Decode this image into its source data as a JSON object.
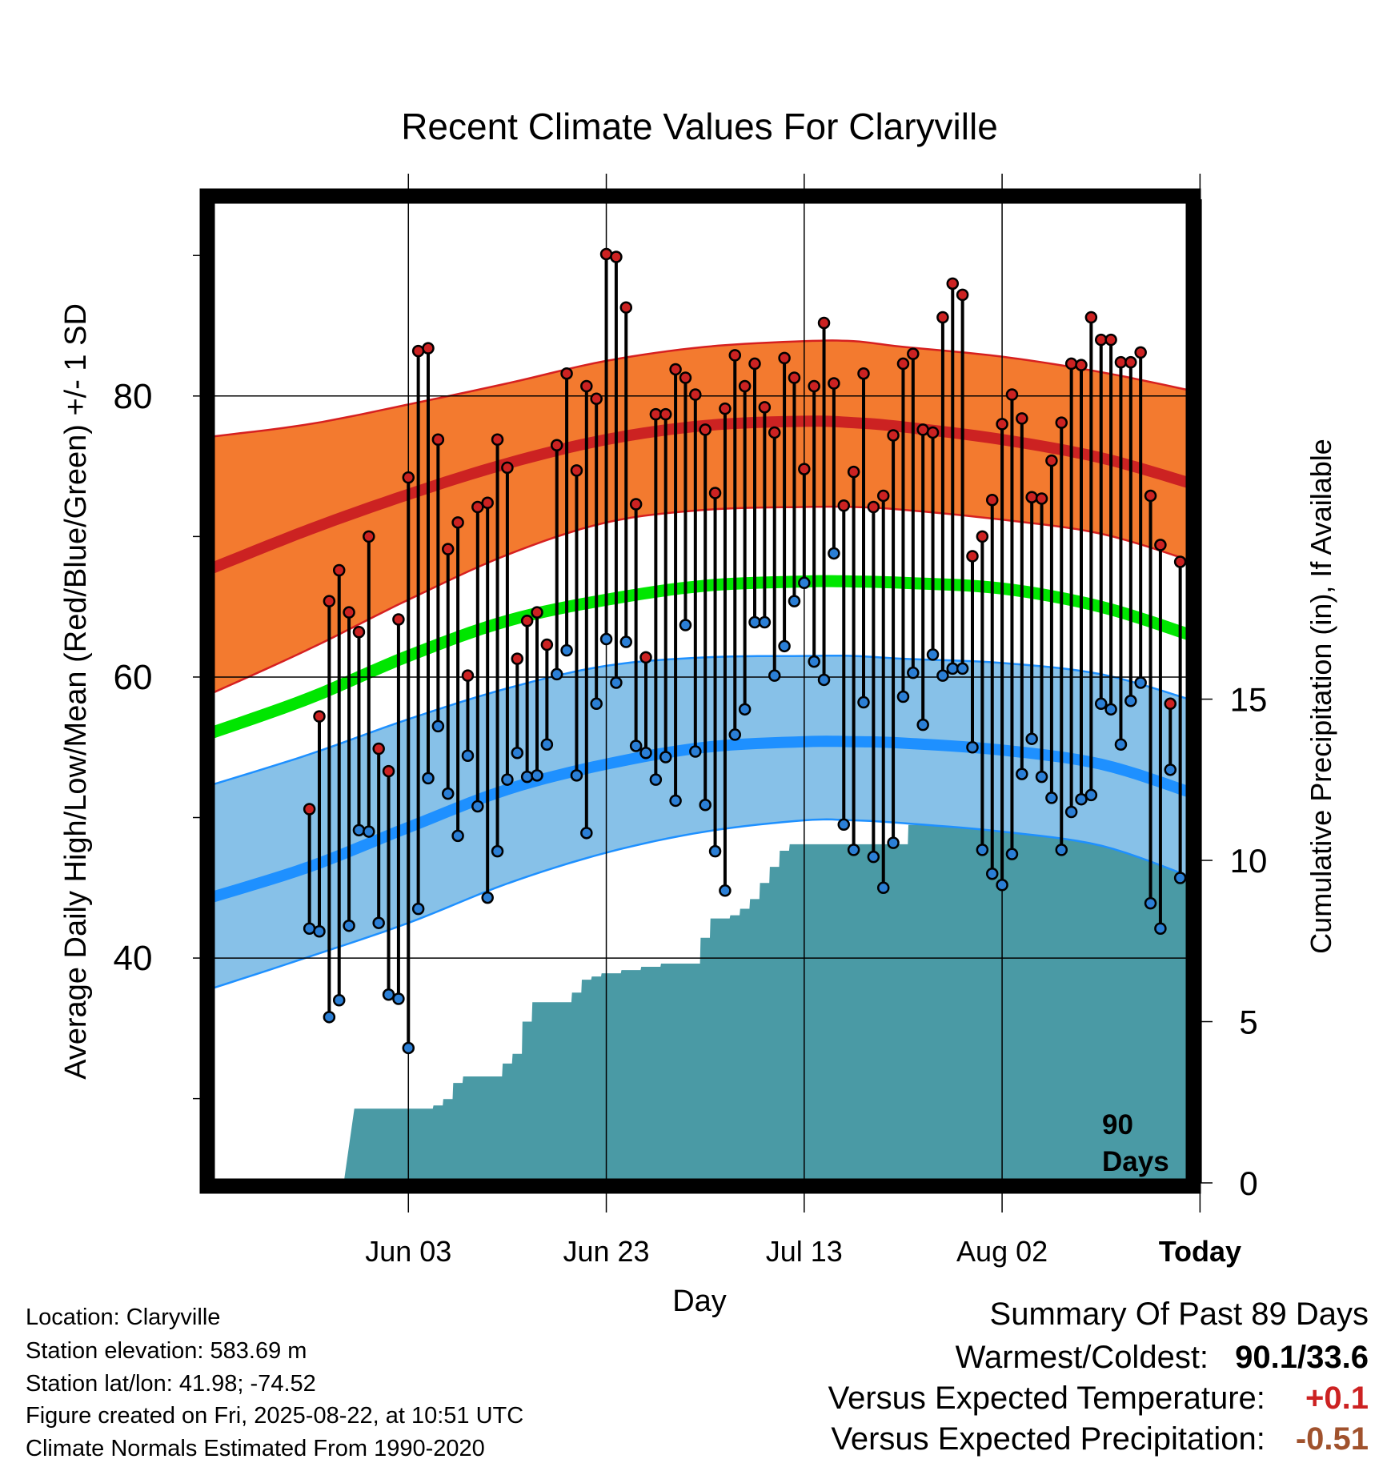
{
  "chart_data": {
    "type": "line",
    "title": "Recent Climate Values For Claryville",
    "xlabel": "Day",
    "ylabel": "Average Daily High/Low/Mean (Red/Blue/Green) +/- 1 SD",
    "y2label": "Cumulative Precipitation (in), If Available",
    "ylim": [
      24,
      94
    ],
    "yticks": [
      40,
      60,
      80
    ],
    "y2lim": [
      0,
      30.5
    ],
    "y2ticks": [
      0,
      5,
      10,
      15
    ],
    "xlim": [
      -10,
      89
    ],
    "xticks": [
      {
        "day": 10,
        "label": "Jun 03"
      },
      {
        "day": 30,
        "label": "Jun 23"
      },
      {
        "day": 50,
        "label": "Jul 13"
      },
      {
        "day": 70,
        "label": "Aug 02"
      },
      {
        "day": 90,
        "label": "Today"
      }
    ],
    "grid": true,
    "today_marker": {
      "day": 90,
      "label_line1": "90",
      "label_line2": "Days"
    },
    "normals": {
      "days": [
        -10,
        0,
        10,
        20,
        30,
        40,
        50,
        55,
        60,
        70,
        80,
        89
      ],
      "high_mean": [
        67.7,
        70.5,
        73.0,
        75.2,
        76.9,
        77.9,
        78.2,
        78.1,
        77.8,
        76.9,
        75.6,
        73.8
      ],
      "high_upper": [
        77.1,
        78.0,
        79.4,
        80.9,
        82.5,
        83.5,
        83.9,
        83.9,
        83.5,
        82.8,
        81.7,
        80.4
      ],
      "high_lower": [
        58.8,
        62.0,
        65.5,
        68.7,
        71.0,
        71.9,
        72.1,
        72.1,
        71.9,
        71.2,
        70.2,
        68.3
      ],
      "mean_normal": [
        56.0,
        58.5,
        61.5,
        64.0,
        65.5,
        66.5,
        66.8,
        66.8,
        66.7,
        66.3,
        65.0,
        63.0
      ],
      "low_mean": [
        44.3,
        46.5,
        49.3,
        52.0,
        53.8,
        55.0,
        55.4,
        55.4,
        55.3,
        54.8,
        53.8,
        51.8
      ],
      "low_upper": [
        52.3,
        54.5,
        57.0,
        59.2,
        60.8,
        61.4,
        61.5,
        61.5,
        61.3,
        61.0,
        60.2,
        58.4
      ],
      "low_lower": [
        37.8,
        40.1,
        42.5,
        45.3,
        47.5,
        49.0,
        49.8,
        49.8,
        49.6,
        49.0,
        48.0,
        45.8
      ]
    },
    "series": [
      {
        "name": "High",
        "color": "#cc2222",
        "values": [
          50.6,
          57.2,
          65.4,
          67.6,
          64.6,
          63.2,
          70.0,
          54.9,
          53.3,
          64.1,
          74.2,
          83.2,
          83.4,
          76.9,
          69.1,
          71.0,
          60.1,
          72.1,
          72.4,
          76.9,
          74.9,
          61.3,
          64.0,
          64.6,
          62.3,
          76.5,
          81.6,
          74.7,
          80.7,
          79.8,
          90.1,
          89.9,
          86.3,
          72.3,
          61.4,
          78.7,
          78.7,
          81.9,
          81.3,
          80.1,
          77.6,
          73.1,
          79.1,
          82.9,
          80.7,
          82.3,
          79.2,
          77.4,
          82.7,
          81.3,
          74.8,
          80.7,
          85.2,
          80.9,
          72.2,
          74.6,
          81.6,
          72.1,
          72.9,
          77.2,
          82.3,
          83.0,
          77.6,
          77.4,
          85.6,
          88.0,
          87.2,
          68.6,
          70.0,
          72.6,
          78.0,
          80.1,
          78.4,
          72.8,
          72.7,
          75.4,
          78.1,
          82.3,
          82.2,
          85.6,
          84.0,
          84.0,
          82.4,
          82.4,
          83.1,
          72.9,
          69.4,
          58.1,
          68.2
        ]
      },
      {
        "name": "Low",
        "color": "#2b7fd6",
        "values": [
          42.1,
          41.9,
          35.8,
          37.0,
          42.3,
          49.1,
          49.0,
          42.5,
          37.4,
          37.1,
          33.6,
          43.5,
          52.8,
          56.5,
          51.7,
          48.7,
          54.4,
          50.8,
          44.3,
          47.6,
          52.7,
          54.6,
          52.9,
          53.0,
          55.2,
          60.2,
          61.9,
          53.0,
          48.9,
          58.1,
          62.7,
          59.6,
          62.5,
          55.1,
          54.6,
          52.7,
          54.3,
          51.2,
          63.7,
          54.7,
          50.9,
          47.6,
          44.8,
          55.9,
          57.7,
          63.9,
          63.9,
          60.1,
          62.2,
          65.4,
          66.7,
          61.1,
          59.8,
          68.8,
          49.5,
          47.7,
          58.2,
          47.2,
          45.0,
          48.2,
          58.6,
          60.3,
          56.6,
          61.6,
          60.1,
          60.6,
          60.6,
          55.0,
          47.7,
          46.0,
          45.2,
          47.4,
          53.1,
          55.6,
          52.9,
          51.4,
          47.7,
          50.4,
          51.3,
          51.6,
          58.1,
          57.7,
          55.2,
          58.3,
          59.6,
          43.9,
          42.1,
          53.4,
          45.7
        ]
      },
      {
        "name": "Cumulative Precipitation",
        "color": "#4a9aa5",
        "days": [
          0,
          1,
          2,
          3,
          5,
          6,
          7,
          8,
          9,
          10,
          11,
          12,
          13,
          14,
          15,
          16,
          17,
          18,
          19,
          20,
          21,
          22,
          23,
          24,
          25,
          26,
          27,
          28,
          29,
          30,
          31,
          32,
          33,
          34,
          35,
          36,
          37,
          38,
          39,
          40,
          41,
          42,
          43,
          44,
          45,
          46,
          47,
          48,
          49,
          50,
          51,
          52,
          53,
          54,
          55,
          56,
          57,
          58,
          59,
          60,
          61,
          62,
          63,
          64,
          65,
          66,
          67,
          68,
          69,
          70,
          71,
          72,
          73,
          74,
          75,
          76,
          77,
          78,
          79,
          80,
          81,
          82,
          83,
          84,
          85,
          86,
          87,
          88,
          89
        ],
        "values": [
          0.0,
          0.0,
          0.0,
          0.0,
          2.3,
          2.3,
          2.3,
          2.3,
          2.3,
          2.3,
          2.3,
          2.3,
          2.4,
          2.6,
          3.1,
          3.3,
          3.3,
          3.3,
          3.3,
          3.7,
          4.0,
          5.0,
          5.6,
          5.6,
          5.6,
          5.6,
          5.9,
          6.3,
          6.4,
          6.5,
          6.5,
          6.6,
          6.6,
          6.7,
          6.7,
          6.8,
          6.8,
          6.8,
          6.8,
          7.6,
          8.2,
          8.2,
          8.3,
          8.5,
          8.8,
          9.3,
          9.8,
          10.3,
          10.5,
          10.5,
          10.5,
          10.5,
          10.5,
          10.5,
          10.5,
          10.5,
          10.5,
          10.5,
          10.5,
          10.5,
          11.1,
          11.3,
          11.3,
          11.3,
          11.3,
          11.8,
          12.6,
          12.6,
          12.6,
          12.6,
          12.6,
          12.6,
          12.6,
          12.8,
          13.1,
          13.3,
          13.3,
          13.3,
          13.3,
          13.3,
          13.3,
          13.5,
          13.5,
          13.5,
          13.5,
          13.5,
          13.8,
          13.8,
          13.8
        ]
      }
    ]
  },
  "footer": {
    "location": "Location: Claryville",
    "elevation": "Station elevation: 583.69 m",
    "latlon": "Station lat/lon: 41.98; -74.52",
    "created": "Figure created on Fri, 2025-08-22, at 10:51 UTC",
    "normals_note": "Climate Normals Estimated From 1990-2020"
  },
  "summary": {
    "title": "Summary Of Past 89 Days",
    "warm_cold_label": "Warmest/Coldest:",
    "warm_cold_value": "90.1/33.6",
    "temp_label": "Versus Expected Temperature:",
    "temp_value": "+0.1",
    "temp_color": "#cc2222",
    "precip_label": "Versus Expected Precipitation:",
    "precip_value": "-0.51",
    "precip_color": "#a0522d"
  }
}
